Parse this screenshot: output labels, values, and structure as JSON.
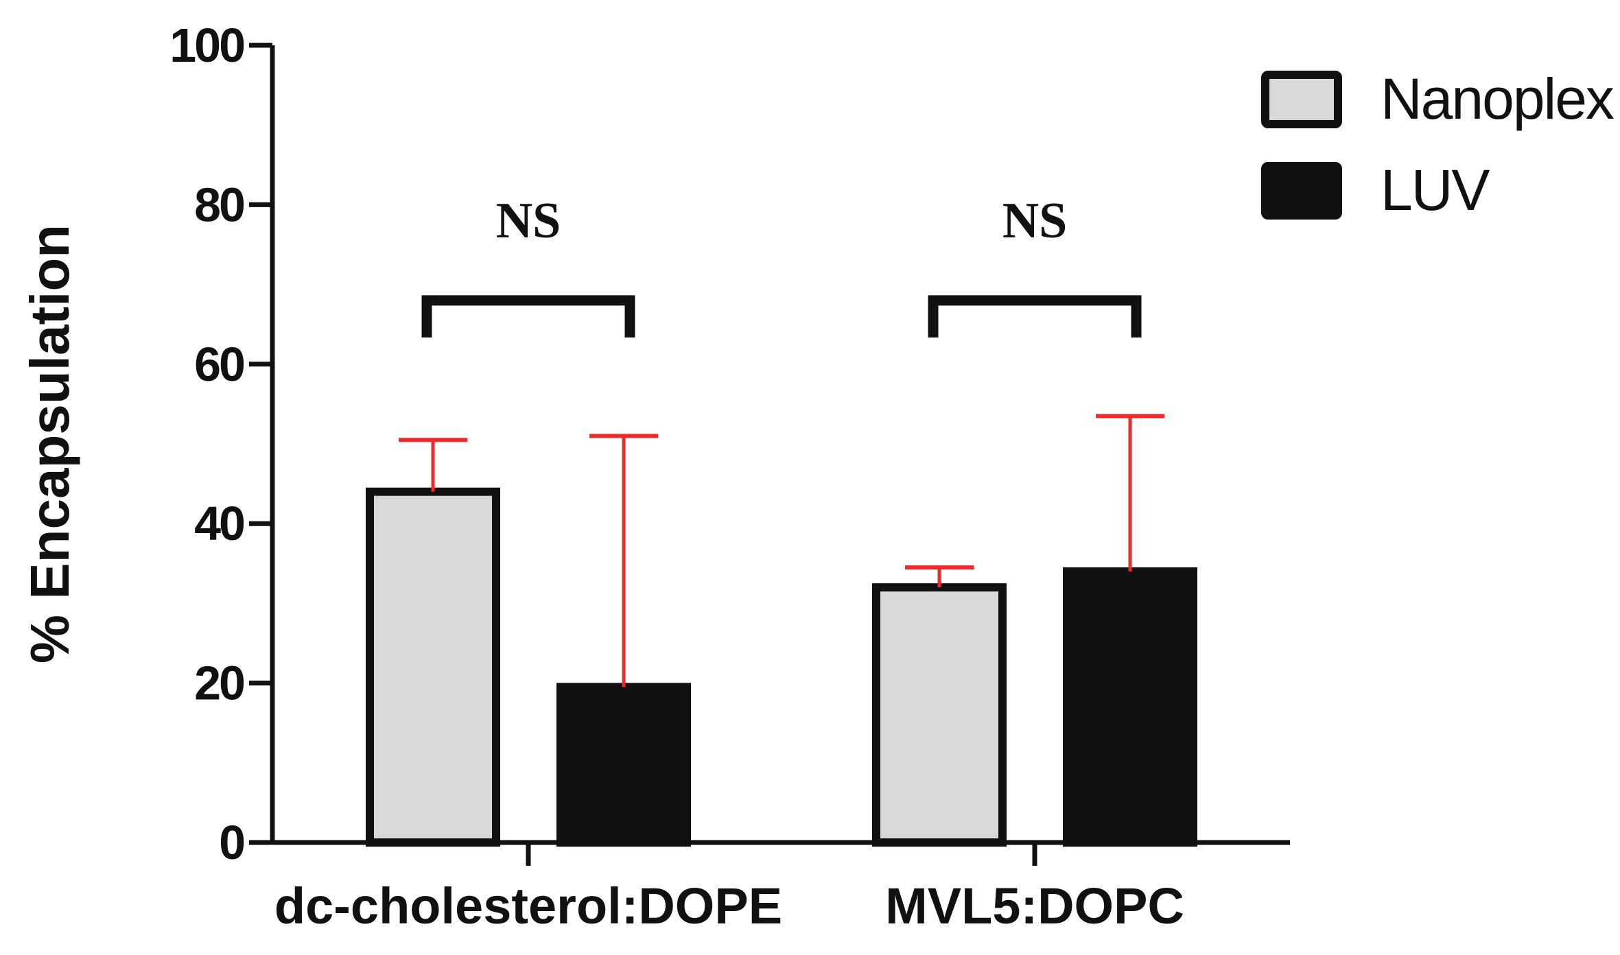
{
  "chart_data": {
    "type": "bar",
    "title": "",
    "xlabel": "",
    "ylabel": "% Encapsulation",
    "ylim": [
      0,
      100
    ],
    "yticks": [
      0,
      20,
      40,
      60,
      80,
      100
    ],
    "ytick_labels": [
      "0",
      "20",
      "40",
      "60",
      "80",
      "100"
    ],
    "grid": false,
    "legend_position": "top-right",
    "categories": [
      "dc-cholesterol:DOPE",
      "MVL5:DOPC"
    ],
    "series": [
      {
        "name": "Nanoplex",
        "values": [
          44,
          32
        ],
        "error_upper": [
          6.5,
          2.5
        ],
        "color": "#d9d9d9",
        "border_color": "#111111"
      },
      {
        "name": "LUV",
        "values": [
          19.5,
          34
        ],
        "error_upper": [
          31.5,
          19.5
        ],
        "color": "#111111",
        "border_color": "#111111"
      }
    ],
    "error_bar_color": "#ee2a2a",
    "significance": [
      {
        "category": "dc-cholesterol:DOPE",
        "label": "NS",
        "y": 68
      },
      {
        "category": "MVL5:DOPC",
        "label": "NS",
        "y": 68
      }
    ]
  }
}
